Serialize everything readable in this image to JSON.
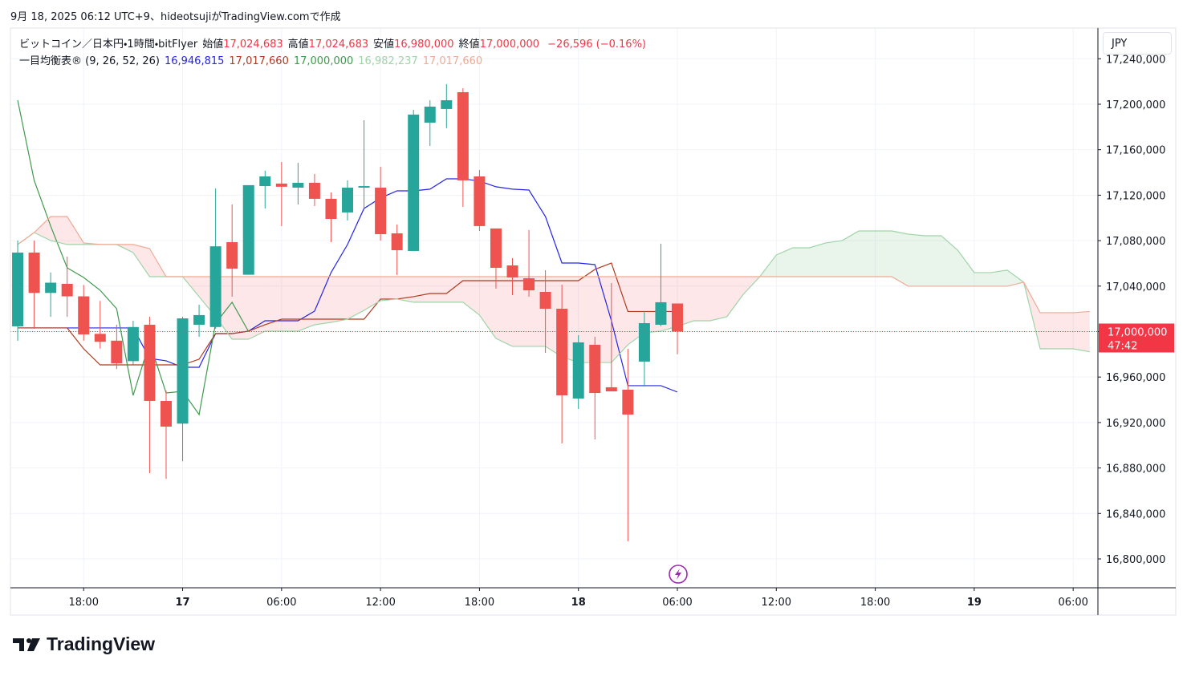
{
  "watermark": "9月 18, 2025 06:12 UTC+9、hideotsujiがTradingView.comで作成",
  "currency": "JPY",
  "brand": "TradingView",
  "chart_data": {
    "type": "candlestick",
    "symbol": "ビットコイン／日本円・1時間・bitFlyer",
    "ohlc_labels": [
      {
        "label": "始値",
        "value": "17,024,683"
      },
      {
        "label": "高値",
        "value": "17,024,683"
      },
      {
        "label": "安値",
        "value": "16,980,000"
      },
      {
        "label": "終値",
        "value": "17,000,000"
      }
    ],
    "change": "−26,596 (−0.16%)",
    "indicator": "一目均衡表® (9, 26, 52, 26)",
    "up_color": "#26a69a",
    "down_color": "#ef5350",
    "x": [
      14,
      15,
      16,
      17,
      18,
      19,
      20,
      21,
      22,
      23,
      24,
      25,
      26,
      27,
      28,
      29,
      30,
      31,
      32,
      33,
      34,
      35,
      36,
      37,
      38,
      39,
      40,
      41,
      42,
      43,
      44,
      45,
      46,
      47,
      48,
      49,
      50,
      51,
      52,
      53,
      54
    ],
    "open": [
      17004600,
      17069500,
      17034000,
      17042000,
      17031000,
      16998000,
      16992000,
      16974000,
      17006000,
      16939000,
      16919000,
      17006000,
      17004000,
      17078700,
      17050000,
      17128000,
      17130200,
      17126600,
      17130900,
      17116800,
      17104800,
      17126600,
      17126600,
      17086400,
      17070900,
      17183800,
      17195800,
      17210600,
      17136500,
      17090700,
      17058200,
      17046900,
      17034900,
      17020100,
      16941100,
      16988400,
      16951000,
      16948900,
      16973600,
      17006000,
      17024683
    ],
    "high": [
      17080100,
      17080100,
      17052000,
      17066000,
      17041000,
      17027000,
      17006000,
      17009500,
      17013000,
      16948000,
      17013000,
      17023600,
      17126000,
      17111800,
      17128800,
      17141500,
      17149200,
      17148500,
      17138600,
      17122400,
      17133000,
      17185900,
      17145000,
      17094200,
      17195100,
      17203500,
      17217700,
      17214100,
      17142200,
      17090700,
      17064600,
      17089300,
      17054000,
      17041300,
      16996800,
      16995400,
      17042700,
      16984800,
      17018000,
      17077300,
      17024683
    ],
    "low": [
      16991900,
      17002500,
      17013000,
      17013000,
      16992000,
      16985000,
      16967000,
      16971000,
      16875500,
      16870500,
      16886000,
      16995400,
      17002500,
      17030700,
      17050000,
      17108300,
      17092800,
      17111800,
      17110400,
      17078700,
      17097700,
      17108300,
      17080000,
      17049700,
      17070900,
      17163300,
      17178900,
      17109700,
      17088500,
      17037800,
      17032100,
      17030700,
      16981300,
      16901600,
      16931900,
      16905100,
      16947400,
      16815500,
      16951700,
      17004600,
      16980000
    ],
    "close": [
      17069500,
      17034000,
      17043000,
      17031000,
      16997500,
      16991000,
      16972000,
      17004000,
      16939000,
      16916400,
      17011600,
      17014500,
      17075000,
      17055400,
      17128800,
      17136500,
      17127400,
      17130900,
      17116800,
      17099100,
      17126600,
      17128000,
      17085700,
      17071600,
      17190900,
      17197900,
      17203500,
      17133000,
      17092800,
      17056100,
      17047600,
      17036300,
      17020100,
      16943900,
      16990500,
      16946000,
      16947400,
      16927000,
      17007400,
      17025800,
      17000000
    ],
    "series": [
      {
        "color": "#2424e8",
        "value_label": "16,946,815",
        "x": [
          14,
          15,
          16,
          17,
          18,
          19,
          20,
          21,
          22,
          23,
          24,
          25,
          26,
          27,
          28,
          29,
          30,
          31,
          32,
          33,
          34,
          35,
          36,
          37,
          38,
          39,
          40,
          41,
          42,
          43,
          44,
          45,
          46,
          47,
          48,
          49,
          50,
          51,
          52,
          53,
          54
        ],
        "values": [
          17003200,
          17003200,
          17003200,
          17003200,
          17003200,
          17003200,
          17003200,
          17003200,
          16976400,
          16974300,
          16968600,
          16968600,
          16998200,
          16998200,
          17000400,
          17009500,
          17009500,
          17009500,
          17018000,
          17051900,
          17076600,
          17108300,
          17117500,
          17123800,
          17123800,
          17125300,
          17134400,
          17134400,
          17132400,
          17127400,
          17125300,
          17124500,
          17101200,
          17060300,
          17060300,
          17058900,
          17009500,
          16952400,
          16952400,
          16952400,
          16946815
        ]
      },
      {
        "color": "#b23a1e",
        "value_label": "17,017,660",
        "x": [
          14,
          15,
          16,
          17,
          18,
          19,
          20,
          21,
          22,
          23,
          24,
          25,
          26,
          27,
          28,
          29,
          30,
          31,
          32,
          33,
          34,
          35,
          36,
          37,
          38,
          39,
          40,
          41,
          42,
          43,
          44,
          45,
          46,
          47,
          48,
          49,
          50,
          51,
          52,
          53,
          54
        ],
        "values": [
          17003200,
          17003200,
          17003200,
          17003200,
          16984800,
          16970700,
          16970700,
          16970700,
          16970700,
          16970700,
          16970700,
          16975700,
          16998200,
          16998200,
          17000400,
          17006000,
          17010900,
          17010900,
          17010900,
          17010900,
          17010900,
          17010900,
          17028600,
          17028600,
          17030700,
          17033500,
          17033500,
          17044800,
          17044800,
          17044800,
          17044800,
          17044800,
          17044800,
          17044800,
          17044800,
          17054700,
          17060300,
          17017660,
          17017660,
          17017660,
          17017660
        ]
      },
      {
        "color": "#3f9a4c",
        "value_label": "17,000,000",
        "x": [
          14,
          15,
          16,
          17,
          18,
          19,
          20,
          21,
          22,
          23,
          24,
          25,
          26,
          27,
          28
        ],
        "values": [
          17203500,
          17133000,
          17092800,
          17056100,
          17047600,
          17036300,
          17020100,
          16943900,
          16990500,
          16946000,
          16947400,
          16927000,
          17007400,
          17025800,
          17000000
        ]
      },
      {
        "color": "#9fd4a8",
        "value_label": "16,982,237",
        "x": [
          14,
          15,
          16,
          17,
          18,
          19,
          20,
          21,
          22,
          23,
          24,
          25,
          26,
          27,
          28,
          29,
          30,
          31,
          32,
          33,
          34,
          35,
          36,
          37,
          38,
          39,
          40,
          41,
          42,
          43,
          44,
          45,
          46,
          47,
          48,
          49,
          50,
          51,
          52,
          53,
          54,
          55,
          56,
          57,
          58,
          59,
          60,
          61,
          62,
          63,
          64,
          65,
          66,
          67,
          68,
          69,
          70,
          71,
          72,
          73,
          74,
          75,
          76,
          77,
          78,
          79
        ],
        "values": [
          17076600,
          17087100,
          17080100,
          17076600,
          17076600,
          17076600,
          17076600,
          17069500,
          17048300,
          17048300,
          17048300,
          17030700,
          17013100,
          16993300,
          16993300,
          17000400,
          17000400,
          17000400,
          17006000,
          17008100,
          17010900,
          17018700,
          17027200,
          17028600,
          17025800,
          17025800,
          17025800,
          17025800,
          17014500,
          16994000,
          16987000,
          16987000,
          16987000,
          16977800,
          16972800,
          16972800,
          16972800,
          16988400,
          16999000,
          17000400,
          17004600,
          17009500,
          17009500,
          17013100,
          17032800,
          17048300,
          17067400,
          17073700,
          17073700,
          17078000,
          17080100,
          17088500,
          17088500,
          17088500,
          17085700,
          17084300,
          17084300,
          17071600,
          17051900,
          17051900,
          17054000,
          17043400,
          16984800,
          16984800,
          16984800,
          16982237
        ]
      },
      {
        "color": "#eeab95",
        "value_label": "17,017,660",
        "x": [
          14,
          15,
          16,
          17,
          18,
          19,
          20,
          21,
          22,
          23,
          24,
          25,
          26,
          27,
          28,
          29,
          30,
          31,
          32,
          33,
          34,
          35,
          36,
          37,
          38,
          39,
          40,
          41,
          42,
          43,
          44,
          45,
          46,
          47,
          48,
          49,
          50,
          51,
          52,
          53,
          54,
          55,
          56,
          57,
          58,
          59,
          60,
          61,
          62,
          63,
          64,
          65,
          66,
          67,
          68,
          69,
          70,
          71,
          72,
          73,
          74,
          75,
          76,
          77,
          78,
          79
        ],
        "values": [
          17076600,
          17087100,
          17101200,
          17101200,
          17078000,
          17076600,
          17076600,
          17076600,
          17073000,
          17048300,
          17048300,
          17048300,
          17048300,
          17048300,
          17048300,
          17048300,
          17048300,
          17048300,
          17048300,
          17048300,
          17048300,
          17048300,
          17048300,
          17048300,
          17048300,
          17048300,
          17048300,
          17048300,
          17048300,
          17048300,
          17048300,
          17048300,
          17048300,
          17048300,
          17048300,
          17048300,
          17048300,
          17048300,
          17048300,
          17048300,
          17048300,
          17048300,
          17048300,
          17048300,
          17048300,
          17048300,
          17048300,
          17048300,
          17048300,
          17048300,
          17048300,
          17048300,
          17048300,
          17048300,
          17039900,
          17039900,
          17039900,
          17039900,
          17039900,
          17039900,
          17039900,
          17043400,
          17016600,
          17016600,
          17016600,
          17017660
        ]
      }
    ],
    "cloud_up_color": "rgba(76,175,80,0.12)",
    "cloud_down_color": "rgba(242,54,69,0.12)",
    "xlim": [
      13.56,
      79.5
    ],
    "xticks": [
      {
        "value": 18,
        "label": "18:00"
      },
      {
        "value": 24,
        "label": "17"
      },
      {
        "value": 30,
        "label": "06:00"
      },
      {
        "value": 36,
        "label": "12:00"
      },
      {
        "value": 42,
        "label": "18:00"
      },
      {
        "value": 48,
        "label": "18"
      },
      {
        "value": 54,
        "label": "06:00"
      },
      {
        "value": 60,
        "label": "12:00"
      },
      {
        "value": 66,
        "label": "18:00"
      },
      {
        "value": 72,
        "label": "19"
      },
      {
        "value": 78,
        "label": "06:00"
      }
    ],
    "ylim": [
      16774600,
      17267000
    ],
    "yticks": [
      {
        "value": 16800000,
        "label": "16,800,000"
      },
      {
        "value": 16840000,
        "label": "16,840,000"
      },
      {
        "value": 16880000,
        "label": "16,880,000"
      },
      {
        "value": 16920000,
        "label": "16,920,000"
      },
      {
        "value": 16960000,
        "label": "16,960,000"
      },
      {
        "value": 17000000,
        "label": "17,000,000"
      },
      {
        "value": 17040000,
        "label": "17,040,000"
      },
      {
        "value": 17080000,
        "label": "17,080,000"
      },
      {
        "value": 17120000,
        "label": "17,120,000"
      },
      {
        "value": 17160000,
        "label": "17,160,000"
      },
      {
        "value": 17200000,
        "label": "17,200,000"
      },
      {
        "value": 17240000,
        "label": "17,240,000"
      }
    ],
    "grid": true,
    "last_price": {
      "value": 17000000,
      "label": "17,000,000",
      "countdown": "47:42",
      "color": "#f23645"
    }
  }
}
